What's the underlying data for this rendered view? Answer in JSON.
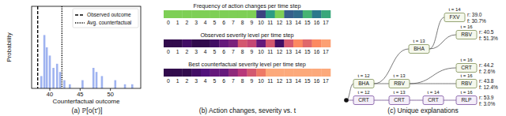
{
  "chart_data": [
    {
      "type": "bar",
      "x_label": "Counterfactual outcome",
      "y_label": "Probability",
      "x": [
        38.6,
        39.1,
        39.5,
        40.0,
        40.6,
        41.2,
        41.7,
        42.4,
        43.3,
        45.4,
        47.2,
        47.7,
        48.6,
        50.8,
        52.4,
        53.6
      ],
      "values": [
        0.03,
        0.13,
        0.1,
        0.08,
        0.05,
        0.06,
        0.04,
        0.02,
        0.01,
        0.02,
        0.05,
        0.04,
        0.03,
        0.02,
        0.01,
        0.01
      ],
      "color": "#9fb3f0",
      "xlim": [
        37,
        55
      ],
      "ylim": [
        0,
        0.2
      ],
      "xticks": [
        40,
        45,
        50
      ],
      "tick_labels": "x",
      "legend": "upper right",
      "reference_lines": [
        {
          "name": "Observed outcome",
          "x": 38,
          "line_style": "dashed"
        },
        {
          "name": "Avg. counterfactual",
          "x": 42,
          "line_style": "dotted"
        }
      ]
    },
    {
      "type": "heatmap",
      "title": "Frequency of action changes per time step",
      "x": [
        0,
        1,
        2,
        3,
        4,
        5,
        6,
        7,
        8,
        9,
        10,
        11,
        12,
        13,
        14,
        15,
        16,
        17
      ],
      "values": [
        0.8,
        0.8,
        0.8,
        0.8,
        0.8,
        0.8,
        0.8,
        0.8,
        0.8,
        0.8,
        0.2,
        0.55,
        0.8,
        0.3,
        0.35,
        0.65,
        0.4,
        0.6
      ],
      "zlim": [
        0,
        1
      ],
      "color": "viridis",
      "tick_labels": "x"
    },
    {
      "type": "heatmap",
      "title": "Observed severity level per time step",
      "x": [
        0,
        1,
        2,
        3,
        4,
        5,
        6,
        7,
        8,
        9,
        10,
        11,
        12,
        13,
        14,
        15,
        16,
        17
      ],
      "values": [
        0.15,
        0.15,
        0.2,
        0.15,
        0.15,
        0.2,
        0.3,
        0.35,
        0.6,
        0.55,
        0.3,
        0.6,
        0.2,
        0.6,
        0.75,
        0.65,
        0.75,
        0.8
      ],
      "zlim": [
        0,
        1
      ],
      "color": "magma",
      "tick_labels": "x"
    },
    {
      "type": "heatmap",
      "title": "Best counterfactual severity level per time step",
      "x": [
        0,
        1,
        2,
        3,
        4,
        5,
        6,
        7,
        8,
        9,
        10,
        11,
        12,
        13,
        14,
        15,
        16,
        17
      ],
      "values": [
        0.15,
        0.15,
        0.15,
        0.2,
        0.25,
        0.3,
        0.3,
        0.4,
        0.5,
        0.6,
        0.7,
        0.82,
        0.82,
        0.82,
        0.82,
        0.82,
        0.82,
        0.82
      ],
      "zlim": [
        0,
        1
      ],
      "color": "magma",
      "tick_labels": "x"
    }
  ],
  "diagram": {
    "nodes": [
      {
        "label": "BHA",
        "t": "t = 12"
      },
      {
        "label": "RBV",
        "t": "t = 13",
        "parent": 0
      },
      {
        "label": "BHA",
        "t": "t = 13",
        "parent": 0
      },
      {
        "label": "FXV",
        "t": "t = 14",
        "parent": 2,
        "r": "r: 39.0",
        "f": "f: 30.7%"
      },
      {
        "label": "RBV",
        "t": "t = 16",
        "parent": 2,
        "r": "r: 40.5",
        "f": "f: 51.3%"
      },
      {
        "label": "CRT",
        "t": "t = 16",
        "parent": 1,
        "r": "r: 44.2",
        "f": "f: 2.6%"
      },
      {
        "label": "RBV",
        "t": "t = 16",
        "parent": 1,
        "r": "r: 43.8",
        "f": "f: 12.4%"
      },
      {
        "label": "CRT",
        "t": "t = 12"
      },
      {
        "label": "CRT",
        "t": "t = 13",
        "parent": 7
      },
      {
        "label": "CRT",
        "t": "t = 14",
        "parent": 8
      },
      {
        "label": "RLP",
        "t": "t = 16",
        "parent": 9,
        "r": "r: 53.9",
        "f": "f: 3.0%"
      }
    ]
  },
  "captions": [
    "(a) ℙ[o(τ′)]",
    "(b) Action changes, severity vs. t",
    "(c) Unique explanations"
  ]
}
